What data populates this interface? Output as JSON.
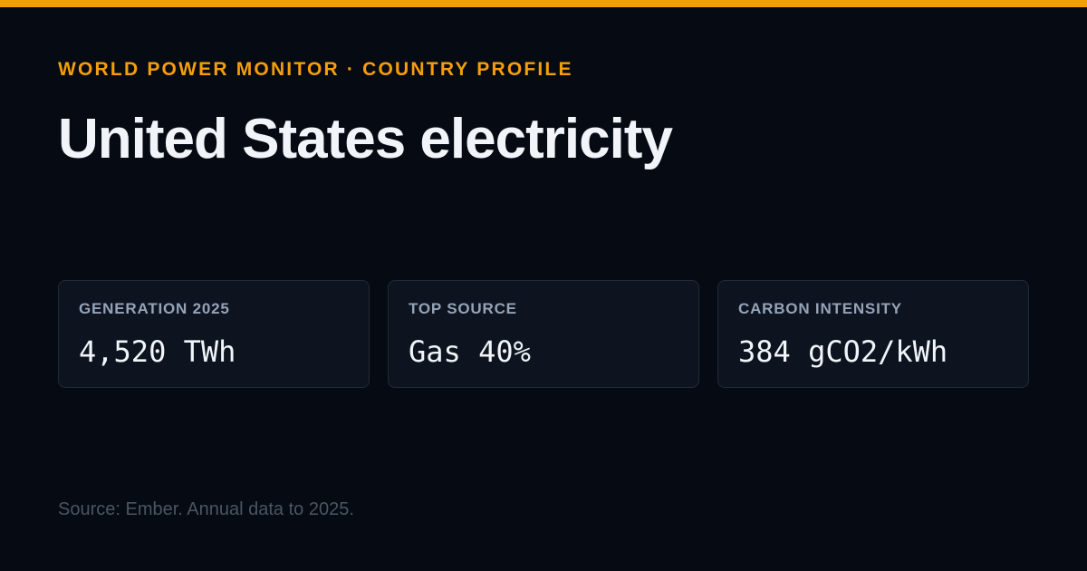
{
  "header": {
    "eyebrow": "WORLD POWER MONITOR · COUNTRY PROFILE",
    "title": "United States electricity"
  },
  "cards": [
    {
      "label": "GENERATION 2025",
      "value": "4,520 TWh"
    },
    {
      "label": "TOP SOURCE",
      "value": "Gas 40%"
    },
    {
      "label": "CARBON INTENSITY",
      "value": "384 gCO2/kWh"
    }
  ],
  "footer": {
    "source": "Source: Ember. Annual data to 2025."
  },
  "colors": {
    "accent": "#f59e0b",
    "background": "#060a12",
    "card_background": "#0e141f"
  }
}
